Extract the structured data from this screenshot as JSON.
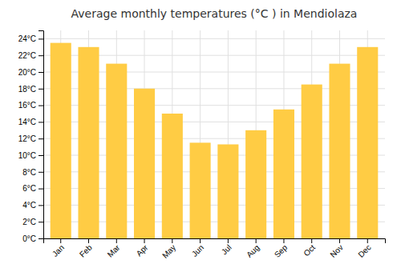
{
  "chart_data": {
    "type": "bar",
    "title": "Average monthly temperatures (°C ) in Mendiolaza",
    "categories": [
      "Jan",
      "Feb",
      "Mar",
      "Apr",
      "May",
      "Jun",
      "Jul",
      "Aug",
      "Sep",
      "Oct",
      "Nov",
      "Dec"
    ],
    "values": [
      23.5,
      23.0,
      21.0,
      18.0,
      15.0,
      11.5,
      11.3,
      13.0,
      15.5,
      18.5,
      21.0,
      23.0
    ],
    "color": "#FFCC44",
    "ylim": [
      0,
      25
    ],
    "yticks": [
      {
        "value": 0,
        "label": "0°C"
      },
      {
        "value": 2,
        "label": "2°C"
      },
      {
        "value": 4,
        "label": "4°C"
      },
      {
        "value": 6,
        "label": "6°C"
      },
      {
        "value": 8,
        "label": "8°C"
      },
      {
        "value": 10,
        "label": "10°C"
      },
      {
        "value": 12,
        "label": "12°C"
      },
      {
        "value": 14,
        "label": "14°C"
      },
      {
        "value": 16,
        "label": "16°C"
      },
      {
        "value": 18,
        "label": "18°C"
      },
      {
        "value": 20,
        "label": "20°C"
      },
      {
        "value": 22,
        "label": "22°C"
      },
      {
        "value": 24,
        "label": "24°C"
      }
    ],
    "grid": true
  }
}
